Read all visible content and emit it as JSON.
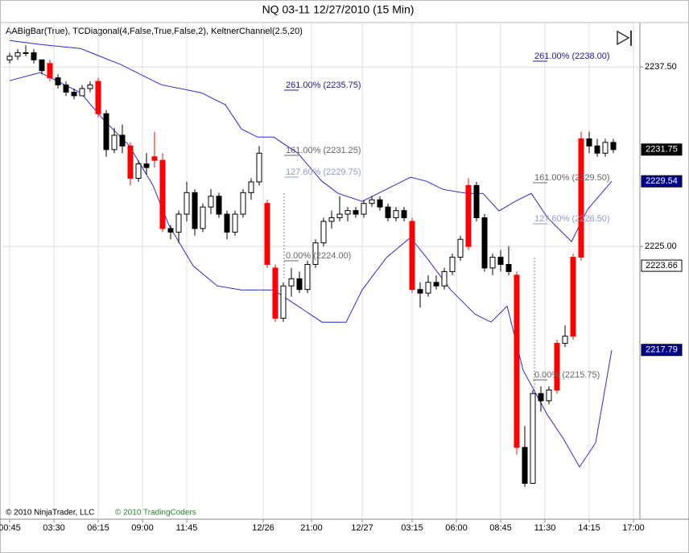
{
  "chart_data": {
    "type": "candlestick",
    "title": "NQ 03-11  12/27/2010 (15 Min)",
    "subtitle": "AABigBar(True), TCDiagonal(4,False,True,False,2), KeltnerChannel(2.5,20)",
    "credits": [
      "© 2010 NinjaTrader, LLC",
      "© 2010 TradingCoders"
    ],
    "credit_colors": [
      "#000000",
      "#2a8a2a"
    ],
    "xlim": [
      -0.7,
      78.3
    ],
    "xticks": [
      {
        "value": 0,
        "label": "00:45"
      },
      {
        "value": 5.5,
        "label": "03:30"
      },
      {
        "value": 11,
        "label": "06:15"
      },
      {
        "value": 16.5,
        "label": "09:00"
      },
      {
        "value": 22,
        "label": "11:45"
      },
      {
        "value": 31.5,
        "label": "12/26"
      },
      {
        "value": 37.5,
        "label": "21:00"
      },
      {
        "value": 43.8,
        "label": "12/27"
      },
      {
        "value": 50,
        "label": "03:15"
      },
      {
        "value": 55.5,
        "label": "06:00"
      },
      {
        "value": 61,
        "label": "08:45"
      },
      {
        "value": 66.5,
        "label": "11:30"
      },
      {
        "value": 72,
        "label": "14:15"
      },
      {
        "value": 77.5,
        "label": "17:00"
      }
    ],
    "ylim": [
      2206,
      2240.6
    ],
    "yticks": [
      {
        "value": 2237.5,
        "label": "2237.50"
      },
      {
        "value": 2225,
        "label": "2225.00"
      }
    ],
    "grid": true,
    "open": [
      2238,
      2238.25,
      2238.5,
      2238.5,
      2238,
      2237.75,
      2236.75,
      2236.25,
      2235.75,
      2235.5,
      2236,
      2236.5,
      2234.25,
      2231.75,
      2232.75,
      2232,
      2229.75,
      2230.75,
      2231.25,
      2231,
      2226.25,
      2226,
      2227.25,
      2228.75,
      2226.25,
      2227.75,
      2228.5,
      2227.25,
      2226,
      2227.25,
      2228.75,
      2229.5,
      2228,
      2223.5,
      2220,
      2222.25,
      2222.75,
      2222,
      2223.75,
      2225.25,
      2226.75,
      2227,
      2227.25,
      2227.5,
      2227.25,
      2228,
      2228.25,
      2227.75,
      2227,
      2227.5,
      2226.75,
      2222,
      2221.75,
      2222.5,
      2222.25,
      2223.25,
      2224.25,
      2225,
      2229.25,
      2227,
      2223.5,
      2224.25,
      2223.75,
      2223,
      2211,
      2208.5,
      2214.75,
      2214.25,
      2215,
      2218.25,
      2218.75,
      2224.25,
      2232.5,
      2232,
      2231.5,
      2232.25
    ],
    "high": [
      2238.5,
      2238.75,
      2239,
      2238.75,
      2238,
      2238,
      2237,
      2236.5,
      2236,
      2236.25,
      2236.5,
      2236.75,
      2234.5,
      2233.25,
      2233.5,
      2232.25,
      2231,
      2231.5,
      2233,
      2231.5,
      2226.5,
      2227.5,
      2229.5,
      2229,
      2228,
      2229,
      2228.75,
      2227.5,
      2227.5,
      2229,
      2229.75,
      2232,
      2228.25,
      2223.75,
      2222.5,
      2223.5,
      2223.25,
      2224,
      2225.5,
      2227,
      2227.5,
      2228.5,
      2227.75,
      2227.75,
      2228.25,
      2228.5,
      2228.5,
      2228,
      2227.75,
      2227.75,
      2227,
      2222.5,
      2223,
      2223,
      2223.5,
      2224.5,
      2225.75,
      2229.75,
      2229.5,
      2227.25,
      2224.5,
      2224.75,
      2225,
      2223.25,
      2212.5,
      2215,
      2215.25,
      2215.25,
      2218.5,
      2219.5,
      2224.5,
      2233,
      2233,
      2232.5,
      2232.5,
      2232.5
    ],
    "low": [
      2237.75,
      2238,
      2238.25,
      2237.75,
      2237,
      2236.5,
      2236,
      2235.5,
      2235.25,
      2235.5,
      2235.75,
      2234,
      2231.25,
      2231.5,
      2231.5,
      2229.25,
      2229.5,
      2230,
      2230.5,
      2226,
      2225.5,
      2225.25,
      2226.75,
      2225.75,
      2226,
      2227.25,
      2227,
      2225.5,
      2225.75,
      2227,
      2228.25,
      2229.25,
      2223.5,
      2219.75,
      2219.75,
      2221.5,
      2221.75,
      2221.75,
      2223.5,
      2225,
      2226.25,
      2226.75,
      2226.75,
      2227,
      2227,
      2227.75,
      2227.5,
      2226.75,
      2226.75,
      2226.75,
      2221.75,
      2220.75,
      2221.5,
      2222,
      2222,
      2223,
      2224,
      2224.75,
      2226.75,
      2223.25,
      2223,
      2223.25,
      2223,
      2210.5,
      2208.25,
      2208.5,
      2213.5,
      2214,
      2214.75,
      2218,
      2218.5,
      2224,
      2231.5,
      2231.25,
      2231.25,
      2231.5
    ],
    "close": [
      2238.25,
      2238.5,
      2238.5,
      2238,
      2237.25,
      2236.75,
      2236.25,
      2235.75,
      2235.5,
      2236,
      2236.25,
      2234.25,
      2231.75,
      2232.75,
      2232,
      2229.75,
      2230.75,
      2230.5,
      2231,
      2226.25,
      2226,
      2227.25,
      2228.75,
      2226.25,
      2227.75,
      2228.5,
      2227.25,
      2226,
      2227.25,
      2228.75,
      2229.5,
      2231.5,
      2223.75,
      2220,
      2222.25,
      2222.75,
      2222,
      2223.75,
      2225.25,
      2226.75,
      2227,
      2227.25,
      2227.5,
      2227.25,
      2228,
      2228.25,
      2227.75,
      2227,
      2227.5,
      2227,
      2222,
      2221.75,
      2222.5,
      2222.25,
      2223.25,
      2224.25,
      2225.5,
      2229.25,
      2227,
      2223.5,
      2224.25,
      2223.75,
      2223.25,
      2211,
      2208.5,
      2214.75,
      2214.25,
      2215,
      2218.25,
      2218.75,
      2224.25,
      2232.5,
      2232,
      2231.5,
      2232.25,
      2231.75
    ],
    "big_bars": [
      5,
      11,
      15,
      18,
      19,
      32,
      33,
      50,
      57,
      63,
      68,
      70,
      71
    ],
    "big_bar_color": "#ff0000",
    "color": "#000000",
    "series": [
      {
        "color": "#2b2bd0",
        "x": [
          0,
          3.8,
          8.8,
          13.8,
          18.8,
          23.8,
          26.8,
          28.8,
          30.8,
          32.8,
          35.8,
          38.8,
          40.8,
          43.8,
          46.8,
          49.8,
          51.8,
          53.8,
          56.8,
          58.8,
          60.8,
          62.8,
          64.8,
          66.8,
          69.8,
          71.8,
          74.8
        ],
        "values": [
          2239.35,
          2239.07,
          2238.79,
          2237.67,
          2236.27,
          2235.71,
          2234.87,
          2233.18,
          2232.62,
          2232.62,
          2231.5,
          2229.54,
          2228.7,
          2228.14,
          2228.98,
          2229.82,
          2229.54,
          2228.98,
          2228.7,
          2228.7,
          2227.47,
          2228.14,
          2228.7,
          2227.02,
          2225.34,
          2227.58,
          2229.54
        ]
      },
      {
        "color": "#2b2bd0",
        "x": [
          0,
          3.8,
          8.8,
          11.8,
          14.8,
          17.8,
          19.8,
          22.8,
          25.8,
          28.8,
          32.8,
          35.8,
          38.8,
          41.8,
          43.8,
          46.8,
          49.8,
          51.8,
          54.8,
          57.8,
          59.8,
          61.8,
          63.8,
          66.8,
          68.8,
          70.8,
          72.8,
          74.8
        ],
        "values": [
          2236.55,
          2237.11,
          2235.71,
          2233.74,
          2232.06,
          2229.26,
          2226.46,
          2223.65,
          2222.25,
          2221.97,
          2221.97,
          2220.85,
          2219.73,
          2219.73,
          2221.97,
          2224.22,
          2225.62,
          2224.22,
          2221.97,
          2220.29,
          2219.73,
          2220.85,
          2216.37,
          2213.28,
          2211.6,
          2209.64,
          2211.32,
          2217.79
        ]
      }
    ],
    "price_markers": [
      {
        "value": 2231.75,
        "fill": "#000000",
        "text_color": "#ffffff"
      },
      {
        "value": 2229.54,
        "fill": "#00008b",
        "text_color": "#ffffff"
      },
      {
        "value": 2223.66,
        "fill": "#ffffff",
        "text_color": "#000000"
      },
      {
        "value": 2217.79,
        "fill": "#00008b",
        "text_color": "#ffffff"
      }
    ],
    "annotations": [
      {
        "text": "261.00% (2238.00)",
        "color": "#1a1a8c"
      },
      {
        "text": "261.00% (2235.75)",
        "color": "#1a1a8c"
      },
      {
        "text": "161.00% (2231.25)",
        "color": "#666666"
      },
      {
        "text": "127.60% (2229.75)",
        "color": "#8c9cc8"
      },
      {
        "text": "0.00% (2224.00)",
        "color": "#666666"
      },
      {
        "text": "161.00% (2229.50)",
        "color": "#666666"
      },
      {
        "text": "127.60% (2226.50)",
        "color": "#8c9cc8"
      },
      {
        "text": "0.00% (2215.75)",
        "color": "#666666"
      }
    ]
  }
}
